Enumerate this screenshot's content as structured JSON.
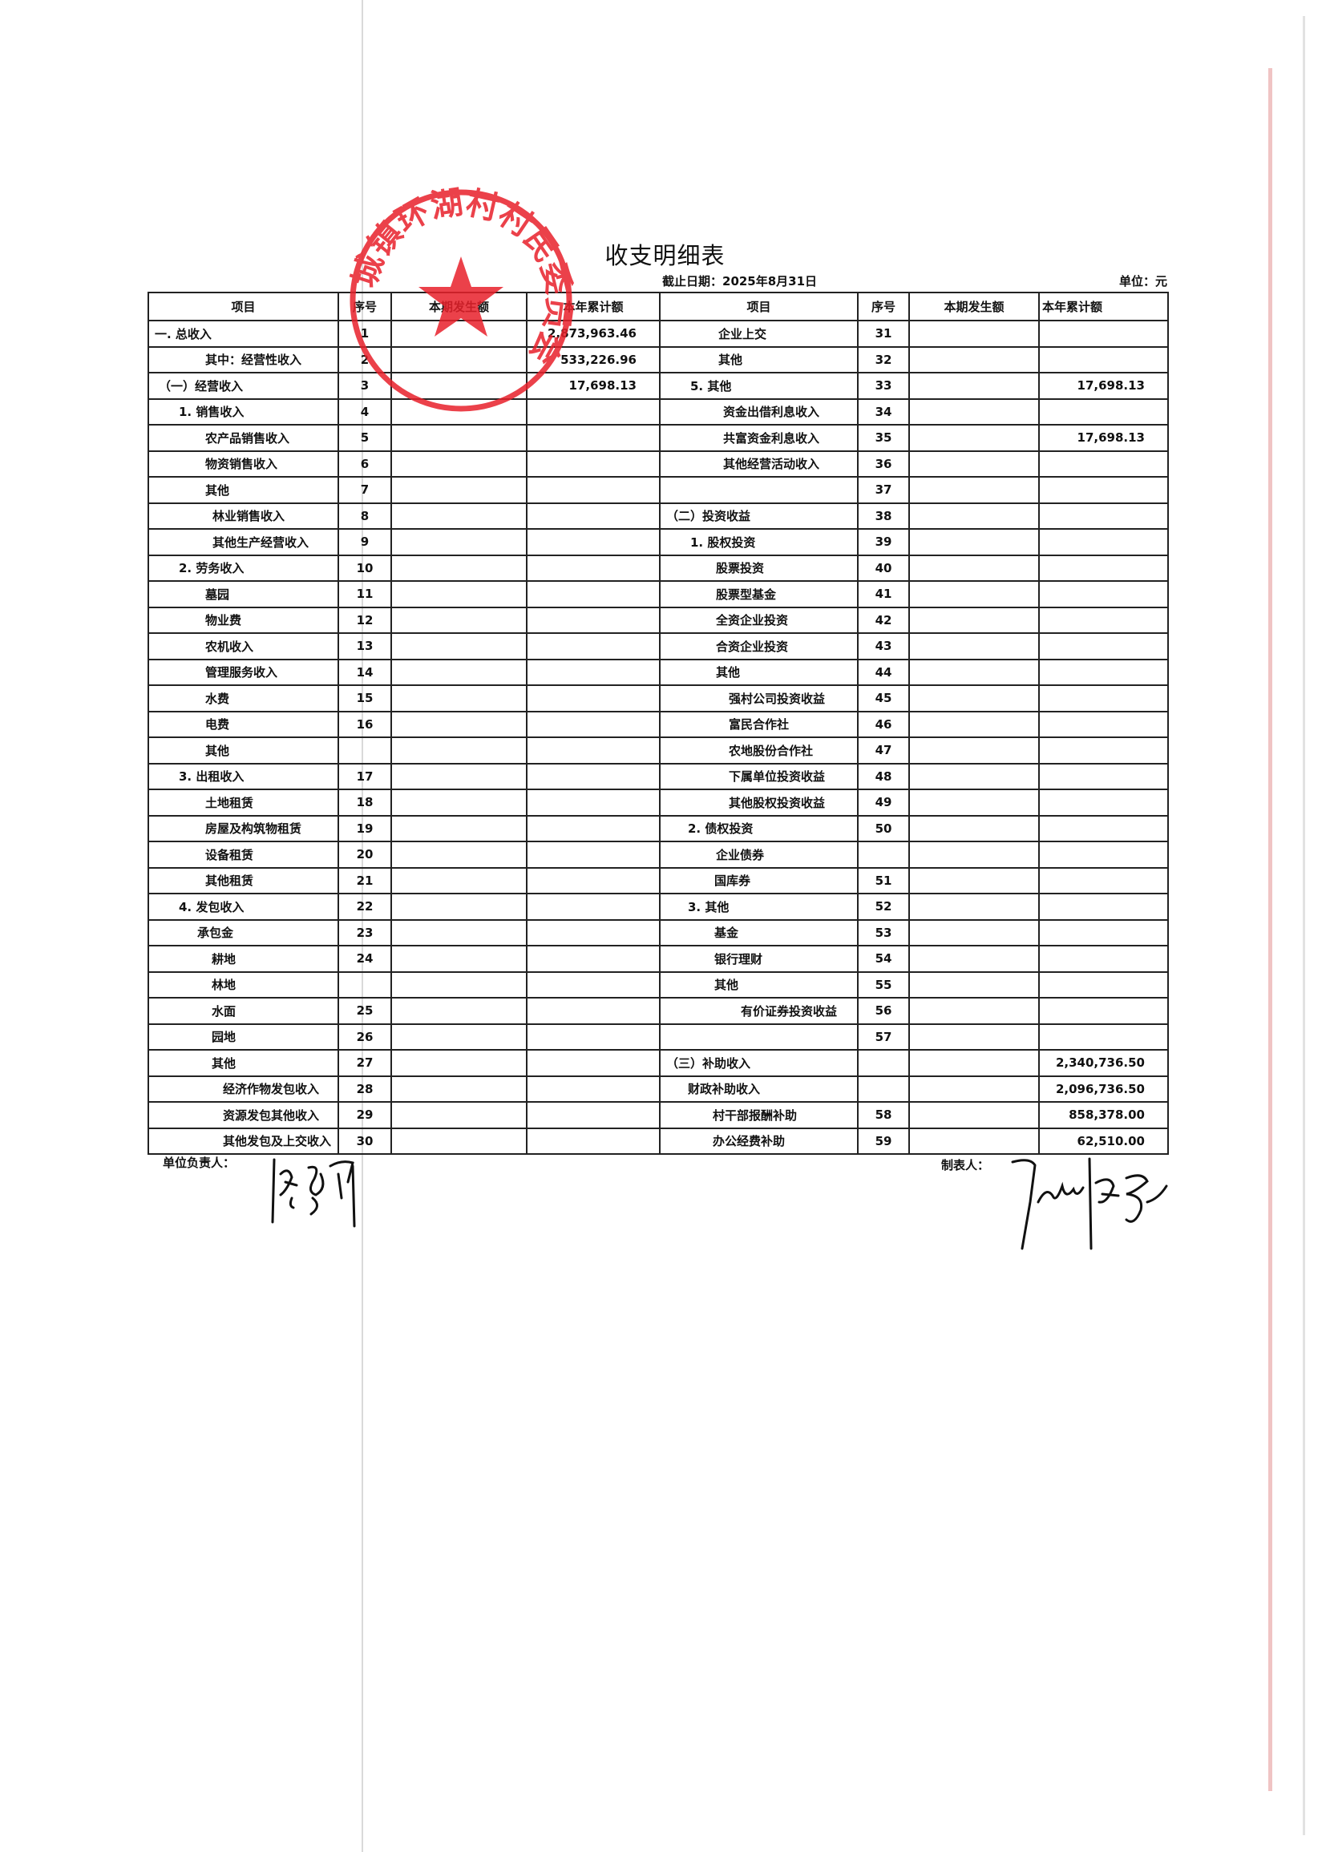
{
  "document": {
    "title": "收支明细表",
    "date_label": "截止日期：2025年8月31日",
    "unit_label": "单位：元"
  },
  "table": {
    "headers": [
      "项目",
      "序号",
      "本期发生额",
      "本年累计额",
      "项目",
      "序号",
      "本期发生额",
      "本年累计额"
    ],
    "rows": [
      {
        "l_item": "一. 总收入",
        "l_seq": "1",
        "l_cur": "",
        "l_ytd": "2,873,963.46",
        "r_item": "企业上交",
        "r_seq": "31",
        "r_cur": "",
        "r_ytd": ""
      },
      {
        "l_item": "其中：经营性收入",
        "l_seq": "2",
        "l_cur": "",
        "l_ytd": "533,226.96",
        "r_item": "其他",
        "r_seq": "32",
        "r_cur": "",
        "r_ytd": ""
      },
      {
        "l_item": "（一）经营收入",
        "l_seq": "3",
        "l_cur": "",
        "l_ytd": "17,698.13",
        "r_item": "5. 其他",
        "r_seq": "33",
        "r_cur": "",
        "r_ytd": "17,698.13"
      },
      {
        "l_item": "1. 销售收入",
        "l_seq": "4",
        "l_cur": "",
        "l_ytd": "",
        "r_item": "资金出借利息收入",
        "r_seq": "34",
        "r_cur": "",
        "r_ytd": ""
      },
      {
        "l_item": "农产品销售收入",
        "l_seq": "5",
        "l_cur": "",
        "l_ytd": "",
        "r_item": "共富资金利息收入",
        "r_seq": "35",
        "r_cur": "",
        "r_ytd": "17,698.13"
      },
      {
        "l_item": "物资销售收入",
        "l_seq": "6",
        "l_cur": "",
        "l_ytd": "",
        "r_item": "其他经营活动收入",
        "r_seq": "36",
        "r_cur": "",
        "r_ytd": ""
      },
      {
        "l_item": "其他",
        "l_seq": "7",
        "l_cur": "",
        "l_ytd": "",
        "r_item": "",
        "r_seq": "37",
        "r_cur": "",
        "r_ytd": ""
      },
      {
        "l_item": "林业销售收入",
        "l_seq": "8",
        "l_cur": "",
        "l_ytd": "",
        "r_item": "（二）投资收益",
        "r_seq": "38",
        "r_cur": "",
        "r_ytd": ""
      },
      {
        "l_item": "其他生产经营收入",
        "l_seq": "9",
        "l_cur": "",
        "l_ytd": "",
        "r_item": "1. 股权投资",
        "r_seq": "39",
        "r_cur": "",
        "r_ytd": ""
      },
      {
        "l_item": "2. 劳务收入",
        "l_seq": "10",
        "l_cur": "",
        "l_ytd": "",
        "r_item": "股票投资",
        "r_seq": "40",
        "r_cur": "",
        "r_ytd": ""
      },
      {
        "l_item": "墓园",
        "l_seq": "11",
        "l_cur": "",
        "l_ytd": "",
        "r_item": "股票型基金",
        "r_seq": "41",
        "r_cur": "",
        "r_ytd": ""
      },
      {
        "l_item": "物业费",
        "l_seq": "12",
        "l_cur": "",
        "l_ytd": "",
        "r_item": "全资企业投资",
        "r_seq": "42",
        "r_cur": "",
        "r_ytd": ""
      },
      {
        "l_item": "农机收入",
        "l_seq": "13",
        "l_cur": "",
        "l_ytd": "",
        "r_item": "合资企业投资",
        "r_seq": "43",
        "r_cur": "",
        "r_ytd": ""
      },
      {
        "l_item": "管理服务收入",
        "l_seq": "14",
        "l_cur": "",
        "l_ytd": "",
        "r_item": "其他",
        "r_seq": "44",
        "r_cur": "",
        "r_ytd": ""
      },
      {
        "l_item": "水费",
        "l_seq": "15",
        "l_cur": "",
        "l_ytd": "",
        "r_item": "强村公司投资收益",
        "r_seq": "45",
        "r_cur": "",
        "r_ytd": ""
      },
      {
        "l_item": "电费",
        "l_seq": "16",
        "l_cur": "",
        "l_ytd": "",
        "r_item": "富民合作社",
        "r_seq": "46",
        "r_cur": "",
        "r_ytd": ""
      },
      {
        "l_item": "其他",
        "l_seq": "",
        "l_cur": "",
        "l_ytd": "",
        "r_item": "农地股份合作社",
        "r_seq": "47",
        "r_cur": "",
        "r_ytd": ""
      },
      {
        "l_item": "3. 出租收入",
        "l_seq": "17",
        "l_cur": "",
        "l_ytd": "",
        "r_item": "下属单位投资收益",
        "r_seq": "48",
        "r_cur": "",
        "r_ytd": ""
      },
      {
        "l_item": "土地租赁",
        "l_seq": "18",
        "l_cur": "",
        "l_ytd": "",
        "r_item": "其他股权投资收益",
        "r_seq": "49",
        "r_cur": "",
        "r_ytd": ""
      },
      {
        "l_item": "房屋及构筑物租赁",
        "l_seq": "19",
        "l_cur": "",
        "l_ytd": "",
        "r_item": "2. 债权投资",
        "r_seq": "50",
        "r_cur": "",
        "r_ytd": ""
      },
      {
        "l_item": "设备租赁",
        "l_seq": "20",
        "l_cur": "",
        "l_ytd": "",
        "r_item": "企业债券",
        "r_seq": "",
        "r_cur": "",
        "r_ytd": ""
      },
      {
        "l_item": "其他租赁",
        "l_seq": "21",
        "l_cur": "",
        "l_ytd": "",
        "r_item": "国库券",
        "r_seq": "51",
        "r_cur": "",
        "r_ytd": ""
      },
      {
        "l_item": "4. 发包收入",
        "l_seq": "22",
        "l_cur": "",
        "l_ytd": "",
        "r_item": "3. 其他",
        "r_seq": "52",
        "r_cur": "",
        "r_ytd": ""
      },
      {
        "l_item": "承包金",
        "l_seq": "23",
        "l_cur": "",
        "l_ytd": "",
        "r_item": "基金",
        "r_seq": "53",
        "r_cur": "",
        "r_ytd": ""
      },
      {
        "l_item": "耕地",
        "l_seq": "24",
        "l_cur": "",
        "l_ytd": "",
        "r_item": "银行理财",
        "r_seq": "54",
        "r_cur": "",
        "r_ytd": ""
      },
      {
        "l_item": "林地",
        "l_seq": "",
        "l_cur": "",
        "l_ytd": "",
        "r_item": "其他",
        "r_seq": "55",
        "r_cur": "",
        "r_ytd": ""
      },
      {
        "l_item": "水面",
        "l_seq": "25",
        "l_cur": "",
        "l_ytd": "",
        "r_item": "有价证券投资收益",
        "r_seq": "56",
        "r_cur": "",
        "r_ytd": ""
      },
      {
        "l_item": "园地",
        "l_seq": "26",
        "l_cur": "",
        "l_ytd": "",
        "r_item": "",
        "r_seq": "57",
        "r_cur": "",
        "r_ytd": ""
      },
      {
        "l_item": "其他",
        "l_seq": "27",
        "l_cur": "",
        "l_ytd": "",
        "r_item": "（三）补助收入",
        "r_seq": "",
        "r_cur": "",
        "r_ytd": "2,340,736.50"
      },
      {
        "l_item": "经济作物发包收入",
        "l_seq": "28",
        "l_cur": "",
        "l_ytd": "",
        "r_item": "财政补助收入",
        "r_seq": "",
        "r_cur": "",
        "r_ytd": "2,096,736.50"
      },
      {
        "l_item": "资源发包其他收入",
        "l_seq": "29",
        "l_cur": "",
        "l_ytd": "",
        "r_item": "村干部报酬补助",
        "r_seq": "58",
        "r_cur": "",
        "r_ytd": "858,378.00"
      },
      {
        "l_item": "其他发包及上交收入",
        "l_seq": "30",
        "l_cur": "",
        "l_ytd": "",
        "r_item": "办公经费补助",
        "r_seq": "59",
        "r_cur": "",
        "r_ytd": "62,510.00"
      }
    ]
  },
  "footer": {
    "unit_head_label": "单位负责人：",
    "preparer_label": "制表人："
  },
  "stamp": {
    "text": "城镇环湖村村民委员会",
    "color": "#e8212b"
  }
}
